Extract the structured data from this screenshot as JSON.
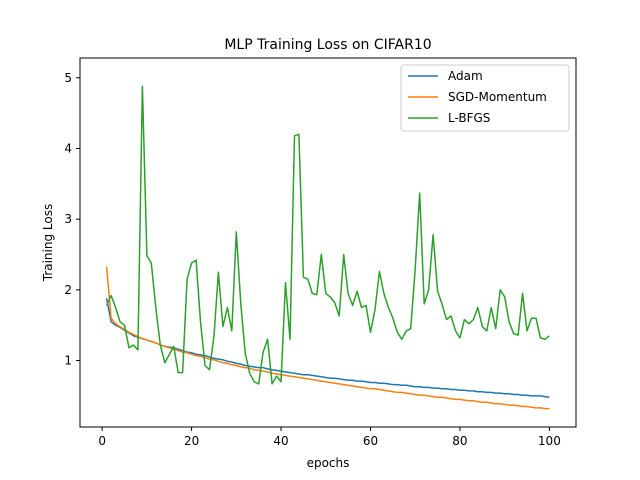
{
  "chart_data": {
    "type": "line",
    "title": "MLP Training Loss on CIFAR10",
    "xlabel": "epochs",
    "ylabel": "Training Loss",
    "xlim": [
      -4.95,
      105.95
    ],
    "ylim": [
      0.06,
      5.28
    ],
    "xticks": [
      0,
      20,
      40,
      60,
      80,
      100
    ],
    "yticks": [
      1,
      2,
      3,
      4,
      5
    ],
    "grid": false,
    "legend_position": "top-right",
    "x": [
      1,
      2,
      3,
      4,
      5,
      6,
      7,
      8,
      9,
      10,
      11,
      12,
      13,
      14,
      15,
      16,
      17,
      18,
      19,
      20,
      21,
      22,
      23,
      24,
      25,
      26,
      27,
      28,
      29,
      30,
      31,
      32,
      33,
      34,
      35,
      36,
      37,
      38,
      39,
      40,
      41,
      42,
      43,
      44,
      45,
      46,
      47,
      48,
      49,
      50,
      51,
      52,
      53,
      54,
      55,
      56,
      57,
      58,
      59,
      60,
      61,
      62,
      63,
      64,
      65,
      66,
      67,
      68,
      69,
      70,
      71,
      72,
      73,
      74,
      75,
      76,
      77,
      78,
      79,
      80,
      81,
      82,
      83,
      84,
      85,
      86,
      87,
      88,
      89,
      90,
      91,
      92,
      93,
      94,
      95,
      96,
      97,
      98,
      99,
      100
    ],
    "series": [
      {
        "name": "Adam",
        "color": "#1f77b4",
        "values": [
          1.88,
          1.55,
          1.5,
          1.47,
          1.43,
          1.39,
          1.35,
          1.33,
          1.31,
          1.29,
          1.27,
          1.25,
          1.22,
          1.2,
          1.19,
          1.18,
          1.16,
          1.14,
          1.12,
          1.11,
          1.09,
          1.08,
          1.07,
          1.05,
          1.03,
          1.02,
          1.01,
          0.99,
          0.98,
          0.96,
          0.95,
          0.93,
          0.92,
          0.91,
          0.9,
          0.9,
          0.88,
          0.87,
          0.86,
          0.85,
          0.84,
          0.83,
          0.82,
          0.81,
          0.8,
          0.8,
          0.79,
          0.78,
          0.77,
          0.76,
          0.75,
          0.75,
          0.74,
          0.73,
          0.72,
          0.72,
          0.71,
          0.71,
          0.7,
          0.69,
          0.69,
          0.68,
          0.68,
          0.67,
          0.66,
          0.66,
          0.65,
          0.65,
          0.64,
          0.63,
          0.63,
          0.62,
          0.62,
          0.61,
          0.61,
          0.6,
          0.6,
          0.59,
          0.59,
          0.58,
          0.58,
          0.57,
          0.57,
          0.56,
          0.56,
          0.55,
          0.55,
          0.54,
          0.54,
          0.53,
          0.53,
          0.52,
          0.52,
          0.51,
          0.51,
          0.5,
          0.5,
          0.5,
          0.49,
          0.48
        ]
      },
      {
        "name": "SGD-Momentum",
        "color": "#ff7f0e",
        "values": [
          2.33,
          1.6,
          1.52,
          1.48,
          1.44,
          1.4,
          1.37,
          1.34,
          1.31,
          1.29,
          1.27,
          1.25,
          1.22,
          1.2,
          1.18,
          1.16,
          1.14,
          1.12,
          1.11,
          1.09,
          1.07,
          1.06,
          1.04,
          1.02,
          1.01,
          0.99,
          0.97,
          0.96,
          0.94,
          0.93,
          0.91,
          0.9,
          0.89,
          0.87,
          0.86,
          0.85,
          0.84,
          0.82,
          0.81,
          0.8,
          0.79,
          0.78,
          0.77,
          0.76,
          0.75,
          0.74,
          0.73,
          0.72,
          0.71,
          0.7,
          0.69,
          0.68,
          0.67,
          0.66,
          0.65,
          0.64,
          0.63,
          0.62,
          0.61,
          0.6,
          0.6,
          0.59,
          0.58,
          0.57,
          0.56,
          0.55,
          0.55,
          0.54,
          0.53,
          0.52,
          0.51,
          0.51,
          0.5,
          0.49,
          0.48,
          0.48,
          0.47,
          0.46,
          0.45,
          0.45,
          0.44,
          0.43,
          0.43,
          0.42,
          0.41,
          0.41,
          0.4,
          0.39,
          0.39,
          0.38,
          0.37,
          0.37,
          0.36,
          0.35,
          0.35,
          0.34,
          0.33,
          0.33,
          0.32,
          0.32
        ]
      },
      {
        "name": "L-BFGS",
        "color": "#2ca02c",
        "values": [
          1.78,
          1.92,
          1.75,
          1.55,
          1.5,
          1.18,
          1.22,
          1.15,
          4.88,
          2.48,
          2.38,
          1.75,
          1.22,
          0.97,
          1.08,
          1.2,
          0.83,
          0.83,
          2.15,
          2.38,
          2.42,
          1.55,
          0.93,
          0.87,
          1.35,
          2.25,
          1.48,
          1.75,
          1.42,
          2.82,
          1.8,
          1.1,
          0.82,
          0.7,
          0.67,
          1.12,
          1.3,
          0.67,
          0.78,
          0.7,
          2.1,
          1.3,
          4.18,
          4.2,
          2.18,
          2.15,
          1.95,
          1.93,
          2.5,
          1.95,
          1.9,
          1.82,
          1.63,
          2.5,
          1.95,
          1.78,
          1.98,
          1.75,
          1.78,
          1.4,
          1.72,
          2.26,
          1.95,
          1.75,
          1.6,
          1.4,
          1.3,
          1.42,
          1.45,
          2.3,
          3.37,
          1.8,
          2.0,
          2.78,
          1.98,
          1.8,
          1.58,
          1.63,
          1.42,
          1.32,
          1.58,
          1.52,
          1.58,
          1.75,
          1.48,
          1.42,
          1.75,
          1.45,
          2.0,
          1.9,
          1.55,
          1.38,
          1.36,
          1.95,
          1.42,
          1.6,
          1.6,
          1.32,
          1.3,
          1.35
        ]
      }
    ]
  }
}
